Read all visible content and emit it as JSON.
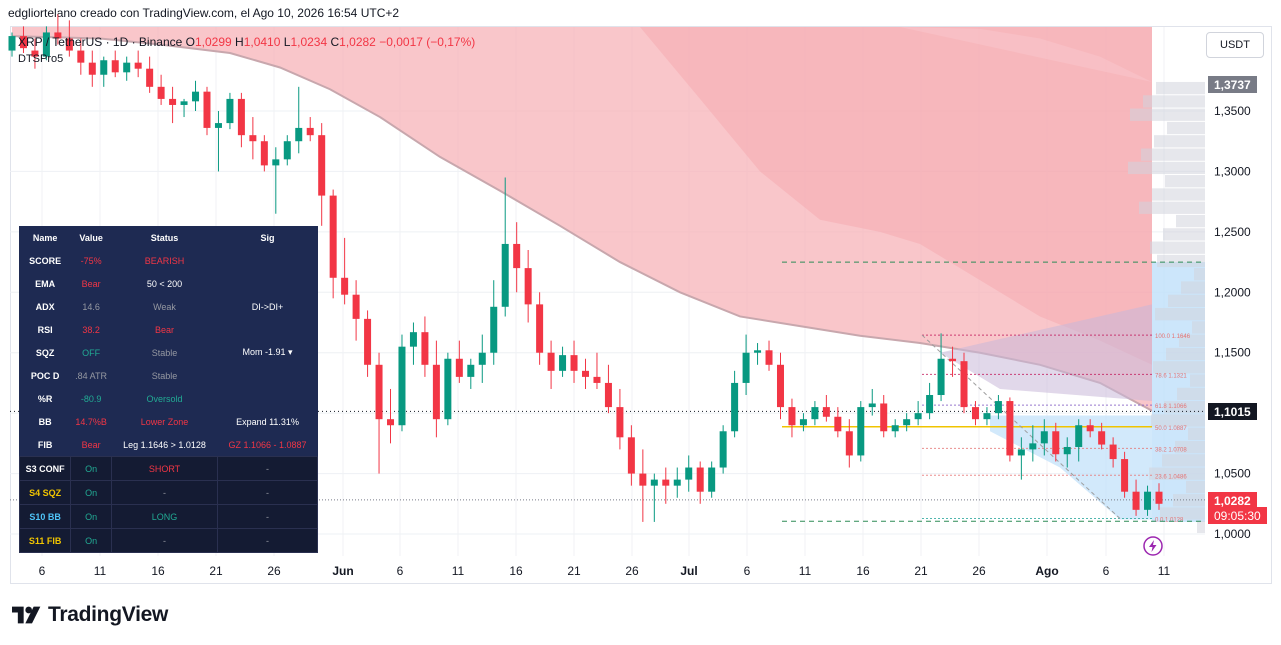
{
  "header": {
    "caption": "edgliortelano creado con TradingView.com, el Ago 10, 2026 16:54 UTC+2"
  },
  "legend": {
    "symbol": "XRP / TetherUS · 1D · Binance",
    "o_label": "O",
    "o": "1,0299",
    "h_label": "H",
    "h": "1,0410",
    "l_label": "L",
    "l": "1,0234",
    "c_label": "C",
    "c": "1,0282",
    "change": "−0,0017 (−0,17%)",
    "indicator": "DTSPro5"
  },
  "currency_button": "USDT",
  "price_badges": {
    "top": "1,3737",
    "mid": "1,1015",
    "last": "1,0282",
    "countdown": "09:05:30"
  },
  "colors": {
    "up": "#089981",
    "down": "#f23645",
    "cloud": "#f7b3b8",
    "blue_zone": "#bfe0fa",
    "panel": "#1e2a52"
  },
  "chart_data": {
    "type": "candlestick",
    "y_axis": {
      "ticks": [
        "1,0000",
        "1,0500",
        "1,1000",
        "1,1500",
        "1,2000",
        "1,2500",
        "1,3000",
        "1,3500"
      ],
      "ylim": [
        0.99,
        1.42
      ]
    },
    "x_axis": {
      "ticks": [
        "6",
        "11",
        "16",
        "21",
        "26",
        "Jun",
        "6",
        "11",
        "16",
        "21",
        "26",
        "Jul",
        "6",
        "11",
        "16",
        "21",
        "26",
        "Ago",
        "6",
        "11"
      ]
    },
    "fib_levels": [
      {
        "label": "100.0  1.1646",
        "value": 1.1646
      },
      {
        "label": "78.6  1.1321",
        "value": 1.1321
      },
      {
        "label": "61.8  1.1066",
        "value": 1.1066
      },
      {
        "label": "50.0  1.0887",
        "value": 1.0887
      },
      {
        "label": "38.2  1.0708",
        "value": 1.0708
      },
      {
        "label": "23.6  1.0486",
        "value": 1.0486
      },
      {
        "label": "0.0  1.0128",
        "value": 1.0128
      }
    ],
    "candles": [
      [
        1.4,
        1.415,
        1.395,
        1.412
      ],
      [
        1.412,
        1.42,
        1.398,
        1.402
      ],
      [
        1.4,
        1.41,
        1.385,
        1.395
      ],
      [
        1.395,
        1.42,
        1.392,
        1.415
      ],
      [
        1.415,
        1.43,
        1.405,
        1.41
      ],
      [
        1.41,
        1.425,
        1.395,
        1.4
      ],
      [
        1.4,
        1.41,
        1.38,
        1.39
      ],
      [
        1.39,
        1.4,
        1.37,
        1.38
      ],
      [
        1.38,
        1.395,
        1.37,
        1.392
      ],
      [
        1.392,
        1.4,
        1.378,
        1.382
      ],
      [
        1.382,
        1.395,
        1.375,
        1.39
      ],
      [
        1.39,
        1.4,
        1.378,
        1.385
      ],
      [
        1.385,
        1.395,
        1.365,
        1.37
      ],
      [
        1.37,
        1.38,
        1.355,
        1.36
      ],
      [
        1.36,
        1.37,
        1.34,
        1.355
      ],
      [
        1.355,
        1.36,
        1.345,
        1.358
      ],
      [
        1.358,
        1.375,
        1.35,
        1.366
      ],
      [
        1.366,
        1.37,
        1.33,
        1.336
      ],
      [
        1.336,
        1.35,
        1.3,
        1.34
      ],
      [
        1.34,
        1.365,
        1.335,
        1.36
      ],
      [
        1.36,
        1.365,
        1.32,
        1.33
      ],
      [
        1.33,
        1.345,
        1.31,
        1.325
      ],
      [
        1.325,
        1.33,
        1.3,
        1.305
      ],
      [
        1.305,
        1.32,
        1.265,
        1.31
      ],
      [
        1.31,
        1.33,
        1.305,
        1.325
      ],
      [
        1.325,
        1.37,
        1.315,
        1.336
      ],
      [
        1.336,
        1.345,
        1.325,
        1.33
      ],
      [
        1.33,
        1.34,
        1.255,
        1.28
      ],
      [
        1.28,
        1.285,
        1.195,
        1.212
      ],
      [
        1.212,
        1.245,
        1.19,
        1.198
      ],
      [
        1.198,
        1.21,
        1.16,
        1.178
      ],
      [
        1.178,
        1.185,
        1.13,
        1.14
      ],
      [
        1.14,
        1.15,
        1.05,
        1.095
      ],
      [
        1.095,
        1.12,
        1.075,
        1.09
      ],
      [
        1.09,
        1.165,
        1.085,
        1.155
      ],
      [
        1.155,
        1.175,
        1.14,
        1.167
      ],
      [
        1.167,
        1.18,
        1.13,
        1.14
      ],
      [
        1.14,
        1.16,
        1.08,
        1.095
      ],
      [
        1.095,
        1.15,
        1.09,
        1.145
      ],
      [
        1.145,
        1.16,
        1.125,
        1.13
      ],
      [
        1.13,
        1.145,
        1.12,
        1.14
      ],
      [
        1.14,
        1.165,
        1.125,
        1.15
      ],
      [
        1.15,
        1.21,
        1.14,
        1.188
      ],
      [
        1.188,
        1.295,
        1.18,
        1.24
      ],
      [
        1.24,
        1.258,
        1.2,
        1.22
      ],
      [
        1.22,
        1.235,
        1.175,
        1.19
      ],
      [
        1.19,
        1.2,
        1.14,
        1.15
      ],
      [
        1.15,
        1.16,
        1.12,
        1.135
      ],
      [
        1.135,
        1.155,
        1.13,
        1.148
      ],
      [
        1.148,
        1.16,
        1.125,
        1.135
      ],
      [
        1.135,
        1.145,
        1.12,
        1.13
      ],
      [
        1.13,
        1.15,
        1.12,
        1.125
      ],
      [
        1.125,
        1.14,
        1.1,
        1.105
      ],
      [
        1.105,
        1.12,
        1.07,
        1.08
      ],
      [
        1.08,
        1.09,
        1.04,
        1.05
      ],
      [
        1.05,
        1.07,
        1.01,
        1.04
      ],
      [
        1.04,
        1.05,
        1.01,
        1.045
      ],
      [
        1.045,
        1.055,
        1.025,
        1.04
      ],
      [
        1.04,
        1.055,
        1.03,
        1.045
      ],
      [
        1.045,
        1.065,
        1.035,
        1.055
      ],
      [
        1.055,
        1.06,
        1.025,
        1.035
      ],
      [
        1.035,
        1.06,
        1.03,
        1.055
      ],
      [
        1.055,
        1.09,
        1.05,
        1.085
      ],
      [
        1.085,
        1.135,
        1.08,
        1.125
      ],
      [
        1.125,
        1.165,
        1.115,
        1.15
      ],
      [
        1.15,
        1.158,
        1.14,
        1.152
      ],
      [
        1.152,
        1.16,
        1.135,
        1.14
      ],
      [
        1.14,
        1.15,
        1.095,
        1.105
      ],
      [
        1.105,
        1.112,
        1.08,
        1.09
      ],
      [
        1.09,
        1.1,
        1.085,
        1.095
      ],
      [
        1.095,
        1.11,
        1.09,
        1.105
      ],
      [
        1.105,
        1.115,
        1.093,
        1.097
      ],
      [
        1.097,
        1.105,
        1.08,
        1.085
      ],
      [
        1.085,
        1.095,
        1.055,
        1.065
      ],
      [
        1.065,
        1.11,
        1.06,
        1.105
      ],
      [
        1.105,
        1.12,
        1.098,
        1.108
      ],
      [
        1.108,
        1.115,
        1.08,
        1.085
      ],
      [
        1.085,
        1.095,
        1.08,
        1.09
      ],
      [
        1.09,
        1.1,
        1.085,
        1.095
      ],
      [
        1.095,
        1.11,
        1.09,
        1.1
      ],
      [
        1.1,
        1.125,
        1.095,
        1.115
      ],
      [
        1.115,
        1.166,
        1.11,
        1.145
      ],
      [
        1.145,
        1.155,
        1.13,
        1.143
      ],
      [
        1.143,
        1.15,
        1.1,
        1.105
      ],
      [
        1.105,
        1.11,
        1.09,
        1.095
      ],
      [
        1.095,
        1.105,
        1.09,
        1.1
      ],
      [
        1.1,
        1.115,
        1.095,
        1.11
      ],
      [
        1.11,
        1.113,
        1.06,
        1.065
      ],
      [
        1.065,
        1.08,
        1.045,
        1.07
      ],
      [
        1.07,
        1.09,
        1.06,
        1.075
      ],
      [
        1.075,
        1.095,
        1.065,
        1.085
      ],
      [
        1.085,
        1.092,
        1.06,
        1.066
      ],
      [
        1.066,
        1.08,
        1.055,
        1.072
      ],
      [
        1.072,
        1.095,
        1.06,
        1.09
      ],
      [
        1.09,
        1.095,
        1.08,
        1.085
      ],
      [
        1.085,
        1.092,
        1.07,
        1.074
      ],
      [
        1.074,
        1.08,
        1.055,
        1.062
      ],
      [
        1.062,
        1.068,
        1.03,
        1.035
      ],
      [
        1.035,
        1.045,
        1.015,
        1.02
      ],
      [
        1.02,
        1.04,
        1.015,
        1.035
      ],
      [
        1.035,
        1.042,
        1.02,
        1.025
      ],
      [
        1.0299,
        1.041,
        1.0234,
        1.0282
      ]
    ],
    "upper_band": [
      [
        1.36,
        1.405
      ],
      [
        1.38,
        1.4
      ],
      [
        1.4,
        1.398
      ],
      [
        1.42,
        1.395
      ],
      [
        1.44,
        1.39
      ],
      [
        1.46,
        1.382
      ],
      [
        1.48,
        1.37
      ],
      [
        1.5,
        1.355
      ],
      [
        1.52,
        1.338
      ],
      [
        1.54,
        1.32
      ],
      [
        1.56,
        1.305
      ],
      [
        1.58,
        1.29
      ],
      [
        1.6,
        1.278
      ],
      [
        1.62,
        1.268
      ],
      [
        1.64,
        1.258
      ],
      [
        1.66,
        1.248
      ],
      [
        1.68,
        1.238
      ],
      [
        1.7,
        1.228
      ],
      [
        1.72,
        1.219
      ],
      [
        1.74,
        1.211
      ],
      [
        1.76,
        1.203
      ],
      [
        1.78,
        1.196
      ],
      [
        1.8,
        1.189
      ],
      [
        1.82,
        1.182
      ],
      [
        1.84,
        1.176
      ],
      [
        1.86,
        1.17
      ],
      [
        1.88,
        1.165
      ],
      [
        1.9,
        1.16
      ],
      [
        1.92,
        1.156
      ],
      [
        1.94,
        1.152
      ],
      [
        1.96,
        1.147
      ],
      [
        1.98,
        1.141
      ],
      [
        2.0,
        1.135
      ],
      [
        2.02,
        1.128
      ],
      [
        2.04,
        1.12
      ],
      [
        2.06,
        1.113
      ],
      [
        2.08,
        1.107
      ],
      [
        2.1,
        1.102
      ]
    ]
  },
  "status_table": {
    "headers": [
      "Name",
      "Value",
      "Status",
      "Sig"
    ],
    "rows": [
      {
        "name": "SCORE",
        "value": "-75%",
        "status": "BEARISH",
        "sig": ""
      },
      {
        "name": "EMA",
        "value": "Bear",
        "status": "50 < 200",
        "sig": ""
      },
      {
        "name": "ADX",
        "value": "14.6",
        "status": "Weak",
        "sig": "DI->DI+"
      },
      {
        "name": "RSI",
        "value": "38.2",
        "status": "Bear",
        "sig": ""
      },
      {
        "name": "SQZ",
        "value": "OFF",
        "status": "Stable",
        "sig": "Mom -1.91 ▾"
      },
      {
        "name": "POC D",
        "value": ".84 ATR",
        "status": "Stable",
        "sig": ""
      },
      {
        "name": "%R",
        "value": "-80.9",
        "status": "Oversold",
        "sig": ""
      },
      {
        "name": "BB",
        "value": "14.7%B",
        "status": "Lower Zone",
        "sig": "Expand 11.31%"
      },
      {
        "name": "FIB",
        "value": "Bear",
        "status": "Leg 1.1646 > 1.0128",
        "sig": "GZ 1.1066 - 1.0887"
      }
    ],
    "signals": [
      {
        "name": "S3 CONF",
        "value": "On",
        "status": "SHORT",
        "sig": "-"
      },
      {
        "name": "S4 SQZ",
        "value": "On",
        "status": "-",
        "sig": "-"
      },
      {
        "name": "S10 BB",
        "value": "On",
        "status": "LONG",
        "sig": "-"
      },
      {
        "name": "S11 FIB",
        "value": "On",
        "status": "-",
        "sig": "-"
      }
    ]
  },
  "brand": {
    "name": "TradingView"
  }
}
